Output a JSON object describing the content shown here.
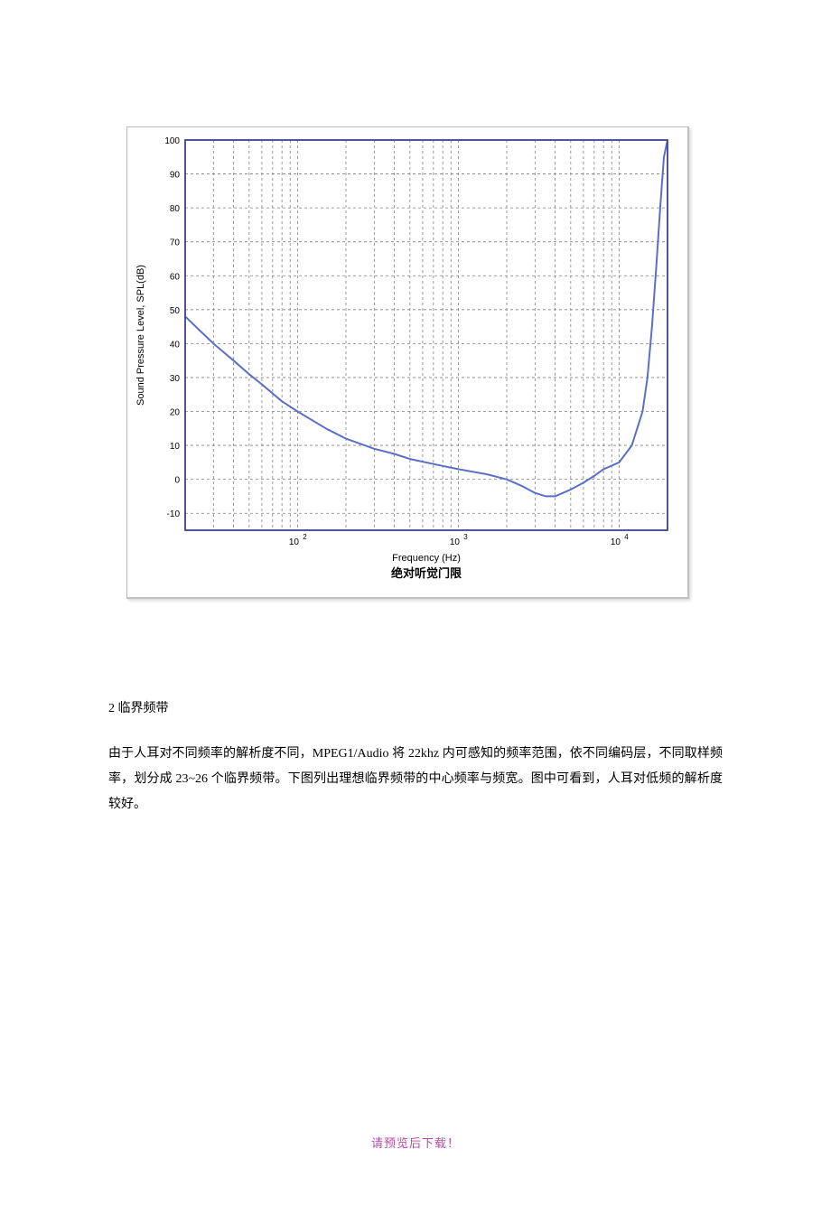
{
  "chart": {
    "type": "line",
    "xlabel": "Frequency (Hz)",
    "ylabel": "Sound Pressure Level, SPL(dB)",
    "caption": "绝对听觉门限",
    "x_scale": "log",
    "x_domain": [
      20,
      20000
    ],
    "x_major_ticks": [
      100,
      1000,
      10000
    ],
    "x_major_labels": [
      "10",
      "10",
      "10"
    ],
    "x_major_expon": [
      "2",
      "3",
      "4"
    ],
    "y_ticks": [
      -10,
      0,
      10,
      20,
      30,
      40,
      50,
      60,
      70,
      80,
      90,
      100
    ],
    "ylim": [
      -15,
      100
    ],
    "curve_color": "#5b6fc7",
    "curve_width": 2,
    "axis_color": "#3b3b8f",
    "grid_color": "#808080",
    "grid_dash": "3,3",
    "background_color": "#ffffff",
    "tick_fontsize": 10,
    "label_fontsize": 11,
    "caption_fontsize": 13,
    "points": [
      [
        20,
        48
      ],
      [
        30,
        40
      ],
      [
        40,
        35
      ],
      [
        50,
        31
      ],
      [
        60,
        28
      ],
      [
        80,
        23
      ],
      [
        100,
        20
      ],
      [
        150,
        15
      ],
      [
        200,
        12
      ],
      [
        300,
        9
      ],
      [
        400,
        7.5
      ],
      [
        500,
        6
      ],
      [
        700,
        4.5
      ],
      [
        1000,
        3
      ],
      [
        1500,
        1.5
      ],
      [
        2000,
        0
      ],
      [
        2500,
        -2
      ],
      [
        3000,
        -4
      ],
      [
        3500,
        -5
      ],
      [
        4000,
        -5
      ],
      [
        5000,
        -3
      ],
      [
        6000,
        -1
      ],
      [
        7000,
        1
      ],
      [
        8000,
        3
      ],
      [
        10000,
        5
      ],
      [
        12000,
        10
      ],
      [
        14000,
        20
      ],
      [
        15000,
        30
      ],
      [
        16000,
        45
      ],
      [
        17000,
        62
      ],
      [
        18000,
        80
      ],
      [
        19000,
        95
      ],
      [
        20000,
        100
      ]
    ]
  },
  "heading": "2 临界频带",
  "para": "由于人耳对不同频率的解析度不同，MPEG1/Audio 将 22khz 内可感知的频率范围，依不同编码层，不同取样频率，划分成 23~26 个临界频带。下图列出理想临界频带的中心频率与频宽。图中可看到，人耳对低频的解析度较好。",
  "footer": {
    "text": "请预览后下载！",
    "color": "#b44aa0"
  }
}
